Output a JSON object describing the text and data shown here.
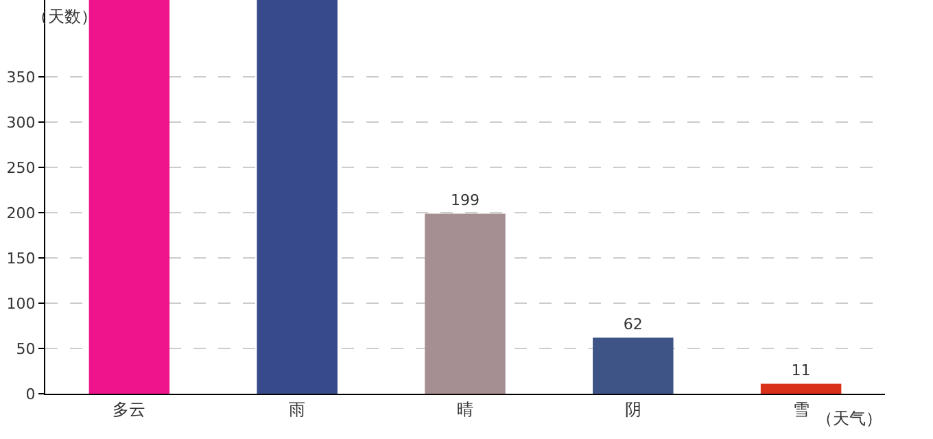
{
  "chart_data": {
    "type": "bar",
    "xlabel": "（天气）",
    "ylabel": "（天数）",
    "categories": [
      "多云",
      "雨",
      "晴",
      "阴",
      "雪"
    ],
    "values": [
      435,
      435,
      199,
      62,
      11
    ],
    "colors": [
      "#f0148c",
      "#374a8c",
      "#a68f93",
      "#3e5487",
      "#d9301a"
    ],
    "value_labels": [
      null,
      null,
      "199",
      "62",
      "11"
    ],
    "ylim": [
      0,
      435
    ],
    "yticks": [
      0,
      50,
      100,
      150,
      200,
      250,
      300,
      350
    ],
    "grid": "y"
  }
}
